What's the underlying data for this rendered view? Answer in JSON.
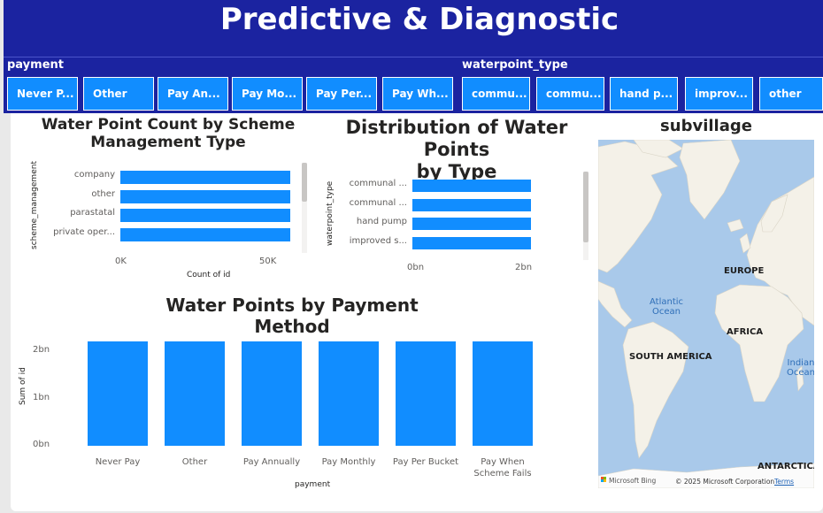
{
  "header": {
    "title": "Predictive & Diagnostic"
  },
  "slicers": {
    "payment": {
      "label": "payment",
      "options": [
        "Never P...",
        "Other",
        "Pay An...",
        "Pay Mo...",
        "Pay Per...",
        "Pay Wh..."
      ]
    },
    "waterpoint_type": {
      "label": "waterpoint_type",
      "options": [
        "commu...",
        "commu...",
        "hand p...",
        "improv...",
        "other"
      ]
    }
  },
  "chart_data": [
    {
      "type": "bar",
      "orientation": "horizontal",
      "title": "Water Point Count by Scheme Management Type",
      "title_lines": [
        "Water Point Count by Scheme",
        "Management Type"
      ],
      "categories": [
        "company",
        "other",
        "parastatal",
        "private oper..."
      ],
      "values": [
        59400,
        59400,
        59400,
        59400
      ],
      "xlabel": "Count of id",
      "ylabel": "scheme_management",
      "xlim": [
        0,
        60000
      ],
      "x_ticks": [
        "0K",
        "50K"
      ],
      "grid": false,
      "legend": "none"
    },
    {
      "type": "bar",
      "orientation": "horizontal",
      "title": "Distribution of Water Points by Type",
      "title_lines": [
        "Distribution of Water Points",
        "by Type"
      ],
      "categories": [
        "communal ...",
        "communal ...",
        "hand pump",
        "improved s..."
      ],
      "values": [
        2.2,
        2.2,
        2.2,
        2.2
      ],
      "xlabel": "",
      "ylabel": "waterpoint_type",
      "xlim": [
        0,
        2.2
      ],
      "x_ticks": [
        "0bn",
        "2bn"
      ],
      "grid": false,
      "legend": "none"
    },
    {
      "type": "bar",
      "orientation": "vertical",
      "title": "Water Points by Payment Method",
      "categories": [
        "Never Pay",
        "Other",
        "Pay Annually",
        "Pay Monthly",
        "Pay Per Bucket",
        "Pay When Scheme Fails"
      ],
      "values": [
        2.25,
        2.25,
        2.25,
        2.25,
        2.25,
        2.25
      ],
      "xlabel": "payment",
      "ylabel": "Sum of id",
      "ylim": [
        0,
        2.25
      ],
      "y_ticks": [
        "2bn",
        "1bn",
        "0bn"
      ],
      "grid": false,
      "legend": "none"
    }
  ],
  "map": {
    "title": "subvillage",
    "labels": {
      "europe": "EUROPE",
      "africa": "AFRICA",
      "south_america": "SOUTH AMERICA",
      "antarctica": "ANTARCTICA",
      "atlantic": "Atlantic\nOcean",
      "indian": "Indian\nOcean"
    },
    "attribution": {
      "brand": "Microsoft Bing",
      "copyright": "© 2025 Microsoft Corporation",
      "terms": "Terms"
    }
  },
  "colors": {
    "header": "#1b23a0",
    "bar": "#118dff",
    "slicer": "#118dff",
    "map_water": "#a9c9ea",
    "map_land": "#f4f1e8"
  }
}
